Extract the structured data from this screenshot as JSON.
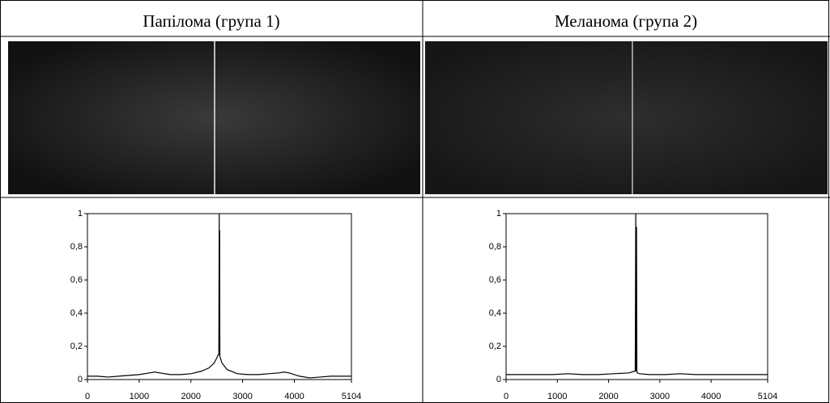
{
  "chart_data": [
    {
      "type": "line",
      "title": "Папілома (група 1)",
      "x": [
        0,
        200,
        400,
        600,
        800,
        1000,
        1200,
        1300,
        1400,
        1600,
        1800,
        2000,
        2200,
        2350,
        2450,
        2500,
        2530,
        2540,
        2548,
        2552,
        2556,
        2560,
        2600,
        2700,
        2900,
        3100,
        3300,
        3500,
        3700,
        3800,
        3900,
        4100,
        4300,
        4500,
        4700,
        4900,
        5104
      ],
      "values": [
        0.02,
        0.02,
        0.015,
        0.02,
        0.025,
        0.03,
        0.04,
        0.045,
        0.04,
        0.03,
        0.03,
        0.035,
        0.05,
        0.07,
        0.1,
        0.13,
        0.15,
        0.15,
        1,
        0.15,
        0.9,
        0.14,
        0.1,
        0.06,
        0.035,
        0.03,
        0.03,
        0.035,
        0.04,
        0.045,
        0.04,
        0.02,
        0.01,
        0.015,
        0.02,
        0.02,
        0.02
      ],
      "color": "#000000",
      "xlim": [
        0,
        5104
      ],
      "ylim": [
        0,
        1
      ],
      "xticks": [
        0,
        1000,
        2000,
        3000,
        4000,
        5104
      ],
      "yticks": [
        0,
        {
          "value": 0.2,
          "label": "0,2"
        },
        {
          "value": 0.4,
          "label": "0,4"
        },
        {
          "value": 0.6,
          "label": "0,6"
        },
        {
          "value": 0.8,
          "label": "0,8"
        },
        1
      ]
    },
    {
      "type": "line",
      "title": "Меланома (група 2)",
      "x": [
        0,
        300,
        600,
        900,
        1200,
        1500,
        1800,
        2100,
        2400,
        2500,
        2520,
        2530,
        2538,
        2545,
        2552,
        2560,
        2600,
        2800,
        3100,
        3400,
        3700,
        4000,
        4300,
        4600,
        4900,
        5104
      ],
      "values": [
        0.03,
        0.03,
        0.03,
        0.03,
        0.035,
        0.03,
        0.03,
        0.035,
        0.04,
        0.05,
        0.05,
        1,
        0.05,
        0.92,
        0.05,
        0.04,
        0.035,
        0.03,
        0.03,
        0.035,
        0.03,
        0.03,
        0.03,
        0.03,
        0.03,
        0.03
      ],
      "color": "#000000",
      "xlim": [
        0,
        5104
      ],
      "ylim": [
        0,
        1
      ],
      "xticks": [
        0,
        1000,
        2000,
        3000,
        4000,
        5104
      ],
      "yticks": [
        0,
        {
          "value": 0.2,
          "label": "0,2"
        },
        {
          "value": 0.4,
          "label": "0,4"
        },
        {
          "value": 0.6,
          "label": "0,6"
        },
        {
          "value": 0.8,
          "label": "0,8"
        },
        1
      ]
    }
  ]
}
